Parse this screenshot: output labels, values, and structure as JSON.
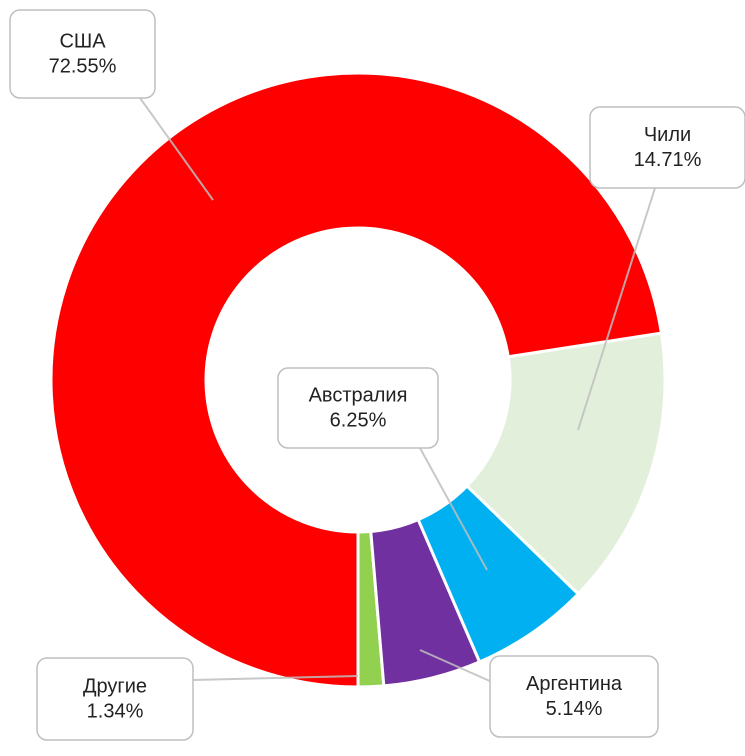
{
  "chart_data": {
    "type": "donut",
    "categories": [
      "Другие",
      "Аргентина",
      "Австралия",
      "Чили",
      "США"
    ],
    "values": [
      1.34,
      5.14,
      6.25,
      14.71,
      72.55
    ],
    "value_labels": [
      "1.34%",
      "5.14%",
      "6.25%",
      "14.71%",
      "72.55%"
    ],
    "colors": [
      "#92d050",
      "#7030a0",
      "#00b0f0",
      "#e2efda",
      "#ff0000"
    ]
  }
}
